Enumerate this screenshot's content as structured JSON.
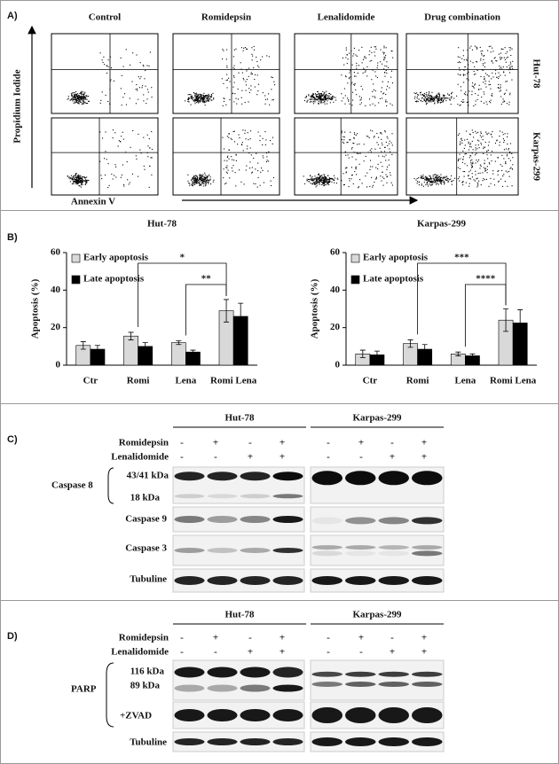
{
  "panel_a": {
    "label": "A)",
    "columns": [
      "Control",
      "Romidepsin",
      "Lenalidomide",
      "Drug combination"
    ],
    "rows": [
      "Hut-78",
      "Karpas-299"
    ],
    "y_axis_label": "Propidium Iodide",
    "x_axis_label": "Annexin V"
  },
  "panel_b_label": "B)",
  "chart_data": [
    {
      "type": "bar",
      "title": "Hut-78",
      "y_axis_label": "Apoptosis (%)",
      "categories": [
        "Ctr",
        "Romi",
        "Lena",
        "Romi Lena"
      ],
      "series": [
        {
          "name": "Early apoptosis",
          "color": "#d9d9d9",
          "values": [
            10.5,
            15.5,
            12,
            29
          ],
          "errors": [
            2,
            2,
            1,
            6
          ]
        },
        {
          "name": "Late apoptosis",
          "color": "#000000",
          "values": [
            8.5,
            10,
            7,
            26
          ],
          "errors": [
            2,
            2,
            1,
            7
          ]
        }
      ],
      "ylim": [
        0,
        60
      ],
      "yticks": [
        0,
        20,
        40,
        60
      ],
      "annotations": [
        "*",
        "**"
      ]
    },
    {
      "type": "bar",
      "title": "Karpas-299",
      "y_axis_label": "Apoptosis (%)",
      "categories": [
        "Ctr",
        "Romi",
        "Lena",
        "Romi Lena"
      ],
      "series": [
        {
          "name": "Early apoptosis",
          "color": "#d9d9d9",
          "values": [
            6,
            11.5,
            6,
            24
          ],
          "errors": [
            2,
            2,
            1,
            6
          ]
        },
        {
          "name": "Late apoptosis",
          "color": "#000000",
          "values": [
            5.5,
            8.5,
            5,
            22.5
          ],
          "errors": [
            2,
            2.5,
            1,
            7
          ]
        }
      ],
      "ylim": [
        0,
        60
      ],
      "yticks": [
        0,
        20,
        40,
        60
      ],
      "annotations": [
        "***",
        "****"
      ]
    }
  ],
  "panel_c": {
    "label": "C)",
    "groups": [
      "Hut-78",
      "Karpas-299"
    ],
    "treatments": [
      {
        "name": "Romidepsin",
        "signs": [
          "-",
          "+",
          "-",
          "+",
          "-",
          "+",
          "-",
          "+"
        ]
      },
      {
        "name": "Lenalidomide",
        "signs": [
          "-",
          "-",
          "+",
          "+",
          "-",
          "-",
          "+",
          "+"
        ]
      }
    ],
    "caspase_8": "Caspase 8",
    "band_43_41": "43/41 kDa",
    "band_18": "18 kDa",
    "caspase_9": "Caspase 9",
    "caspase_3": "Caspase 3",
    "tubuline": "Tubuline"
  },
  "panel_d": {
    "label": "D)",
    "groups": [
      "Hut-78",
      "Karpas-299"
    ],
    "treatments": [
      {
        "name": "Romidepsin",
        "signs": [
          "-",
          "+",
          "-",
          "+",
          "-",
          "+",
          "-",
          "+"
        ]
      },
      {
        "name": "Lenalidomide",
        "signs": [
          "-",
          "-",
          "+",
          "+",
          "-",
          "-",
          "+",
          "+"
        ]
      }
    ],
    "parp": "PARP",
    "band_116": "116 kDa",
    "band_89": "89 kDa",
    "zvad": "+ZVAD",
    "tubuline": "Tubuline"
  }
}
